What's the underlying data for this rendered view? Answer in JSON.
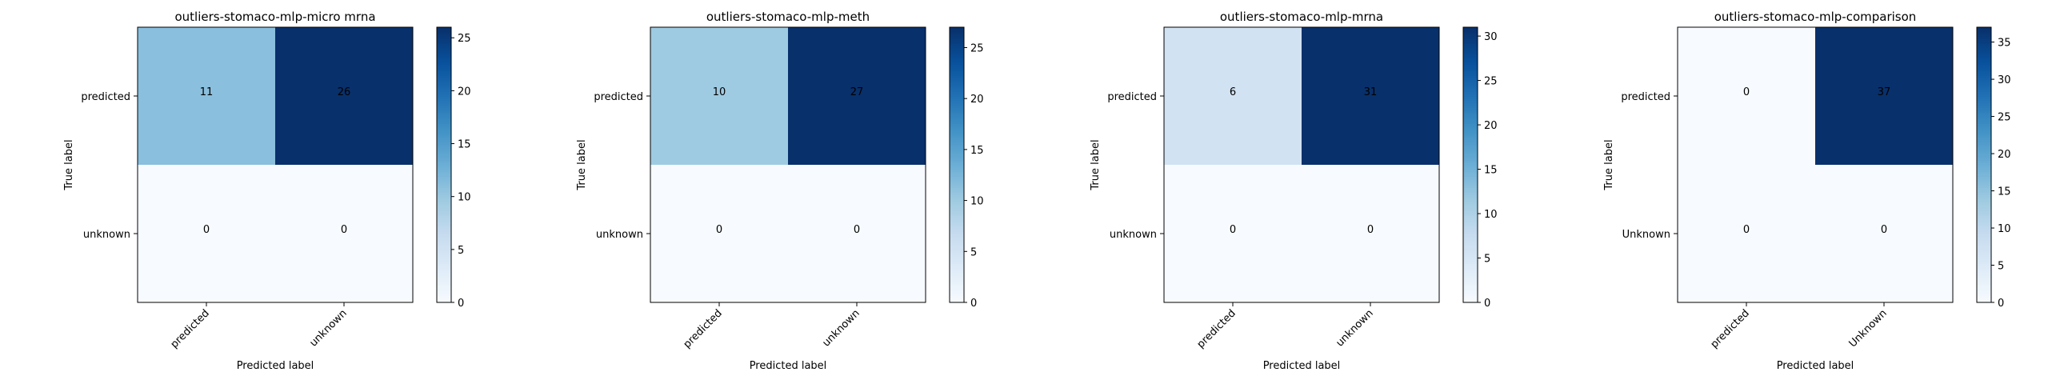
{
  "chart_data": [
    {
      "type": "heatmap",
      "title": "outliers-stomaco-mlp-micro mrna",
      "xlabel": "Predicted label",
      "ylabel": "True label",
      "x_categories": [
        "predicted",
        "unknown"
      ],
      "y_categories": [
        "predicted",
        "unknown"
      ],
      "values": [
        [
          11,
          26
        ],
        [
          0,
          0
        ]
      ],
      "colorbar": {
        "min": 0,
        "max": 26,
        "ticks": [
          0,
          5,
          10,
          15,
          20,
          25
        ]
      }
    },
    {
      "type": "heatmap",
      "title": "outliers-stomaco-mlp-meth",
      "xlabel": "Predicted label",
      "ylabel": "True label",
      "x_categories": [
        "predicted",
        "unknown"
      ],
      "y_categories": [
        "predicted",
        "unknown"
      ],
      "values": [
        [
          10,
          27
        ],
        [
          0,
          0
        ]
      ],
      "colorbar": {
        "min": 0,
        "max": 27,
        "ticks": [
          0,
          5,
          10,
          15,
          20,
          25
        ]
      }
    },
    {
      "type": "heatmap",
      "title": "outliers-stomaco-mlp-mrna",
      "xlabel": "Predicted label",
      "ylabel": "True label",
      "x_categories": [
        "predicted",
        "unknown"
      ],
      "y_categories": [
        "predicted",
        "unknown"
      ],
      "values": [
        [
          6,
          31
        ],
        [
          0,
          0
        ]
      ],
      "colorbar": {
        "min": 0,
        "max": 31,
        "ticks": [
          0,
          5,
          10,
          15,
          20,
          25,
          30
        ]
      }
    },
    {
      "type": "heatmap",
      "title": "outliers-stomaco-mlp-comparison",
      "xlabel": "Predicted label",
      "ylabel": "True label",
      "x_categories": [
        "predicted",
        "Unknown"
      ],
      "y_categories": [
        "predicted",
        "Unknown"
      ],
      "values": [
        [
          0,
          37
        ],
        [
          0,
          0
        ]
      ],
      "colorbar": {
        "min": 0,
        "max": 37,
        "ticks": [
          0,
          5,
          10,
          15,
          20,
          25,
          30,
          35
        ]
      }
    }
  ],
  "colors": {
    "cmap": "Blues",
    "cmap_stops": [
      "#f7fbff",
      "#deebf7",
      "#c6dbef",
      "#9ecae1",
      "#6baed6",
      "#4292c6",
      "#2171b5",
      "#08519c",
      "#08306b"
    ],
    "dark_text": "#000000",
    "light_text": "#ffffff",
    "axis_color": "#000000"
  }
}
